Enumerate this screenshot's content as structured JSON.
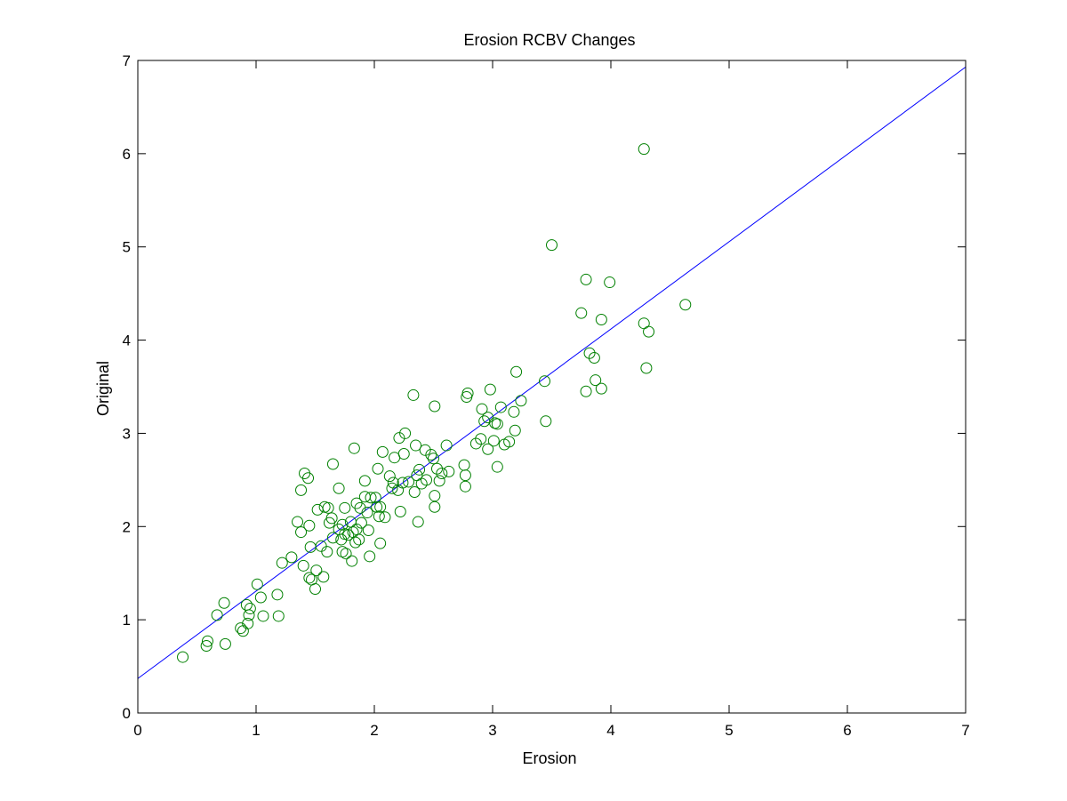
{
  "chart_data": {
    "type": "scatter",
    "title": "Erosion RCBV Changes",
    "xlabel": "Erosion",
    "ylabel": "Original",
    "xlim": [
      0,
      7
    ],
    "ylim": [
      0,
      7
    ],
    "x_ticks": [
      0,
      1,
      2,
      3,
      4,
      5,
      6,
      7
    ],
    "y_ticks": [
      0,
      1,
      2,
      3,
      4,
      5,
      6,
      7
    ],
    "grid": false,
    "legend": "none",
    "colors": {
      "points": "#008000",
      "fit_line": "#0000ff",
      "axes": "#000000",
      "background": "#ffffff"
    },
    "series": [
      {
        "kind": "points",
        "marker": "circle-open",
        "points": [
          [
            0.38,
            0.6
          ],
          [
            0.58,
            0.72
          ],
          [
            0.59,
            0.77
          ],
          [
            0.67,
            1.05
          ],
          [
            0.73,
            1.18
          ],
          [
            0.74,
            0.74
          ],
          [
            0.87,
            0.91
          ],
          [
            0.89,
            0.88
          ],
          [
            0.92,
            1.16
          ],
          [
            0.93,
            0.96
          ],
          [
            0.94,
            1.05
          ],
          [
            0.95,
            1.12
          ],
          [
            1.01,
            1.38
          ],
          [
            1.04,
            1.24
          ],
          [
            1.06,
            1.04
          ],
          [
            1.18,
            1.27
          ],
          [
            1.19,
            1.04
          ],
          [
            1.22,
            1.61
          ],
          [
            1.3,
            1.67
          ],
          [
            1.35,
            2.05
          ],
          [
            1.38,
            1.94
          ],
          [
            1.38,
            2.39
          ],
          [
            1.4,
            1.58
          ],
          [
            1.41,
            2.57
          ],
          [
            1.44,
            2.52
          ],
          [
            1.45,
            1.45
          ],
          [
            1.45,
            2.01
          ],
          [
            1.46,
            1.78
          ],
          [
            1.47,
            1.43
          ],
          [
            1.5,
            1.33
          ],
          [
            1.51,
            1.53
          ],
          [
            1.52,
            2.18
          ],
          [
            1.55,
            1.79
          ],
          [
            1.57,
            1.46
          ],
          [
            1.58,
            2.21
          ],
          [
            1.6,
            1.73
          ],
          [
            1.61,
            2.2
          ],
          [
            1.62,
            2.04
          ],
          [
            1.64,
            2.09
          ],
          [
            1.65,
            2.67
          ],
          [
            1.65,
            1.88
          ],
          [
            1.7,
            2.41
          ],
          [
            1.7,
            1.97
          ],
          [
            1.72,
            1.86
          ],
          [
            1.73,
            2.02
          ],
          [
            1.73,
            1.73
          ],
          [
            1.75,
            1.92
          ],
          [
            1.75,
            2.2
          ],
          [
            1.76,
            1.71
          ],
          [
            1.78,
            1.91
          ],
          [
            1.8,
            2.05
          ],
          [
            1.81,
            1.63
          ],
          [
            1.82,
            1.94
          ],
          [
            1.83,
            2.84
          ],
          [
            1.84,
            1.83
          ],
          [
            1.85,
            2.25
          ],
          [
            1.85,
            1.97
          ],
          [
            1.87,
            1.86
          ],
          [
            1.88,
            2.2
          ],
          [
            1.89,
            2.04
          ],
          [
            1.92,
            2.32
          ],
          [
            1.92,
            2.49
          ],
          [
            1.94,
            2.15
          ],
          [
            1.95,
            1.96
          ],
          [
            1.96,
            1.68
          ],
          [
            1.97,
            2.31
          ],
          [
            2.01,
            2.31
          ],
          [
            2.02,
            2.21
          ],
          [
            2.03,
            2.62
          ],
          [
            2.04,
            2.11
          ],
          [
            2.05,
            2.21
          ],
          [
            2.05,
            1.82
          ],
          [
            2.07,
            2.8
          ],
          [
            2.09,
            2.1
          ],
          [
            2.13,
            2.54
          ],
          [
            2.15,
            2.41
          ],
          [
            2.16,
            2.47
          ],
          [
            2.17,
            2.74
          ],
          [
            2.2,
            2.39
          ],
          [
            2.21,
            2.95
          ],
          [
            2.22,
            2.16
          ],
          [
            2.24,
            2.47
          ],
          [
            2.25,
            2.78
          ],
          [
            2.26,
            3.0
          ],
          [
            2.29,
            2.48
          ],
          [
            2.33,
            3.41
          ],
          [
            2.34,
            2.37
          ],
          [
            2.35,
            2.87
          ],
          [
            2.36,
            2.55
          ],
          [
            2.37,
            2.05
          ],
          [
            2.38,
            2.61
          ],
          [
            2.4,
            2.46
          ],
          [
            2.43,
            2.82
          ],
          [
            2.44,
            2.5
          ],
          [
            2.48,
            2.77
          ],
          [
            2.5,
            2.73
          ],
          [
            2.51,
            2.33
          ],
          [
            2.51,
            2.21
          ],
          [
            2.51,
            3.29
          ],
          [
            2.53,
            2.62
          ],
          [
            2.55,
            2.49
          ],
          [
            2.57,
            2.57
          ],
          [
            2.61,
            2.87
          ],
          [
            2.63,
            2.59
          ],
          [
            2.76,
            2.66
          ],
          [
            2.77,
            2.55
          ],
          [
            2.77,
            2.43
          ],
          [
            2.78,
            3.39
          ],
          [
            2.79,
            3.43
          ],
          [
            2.86,
            2.89
          ],
          [
            2.9,
            2.94
          ],
          [
            2.91,
            3.26
          ],
          [
            2.93,
            3.13
          ],
          [
            2.96,
            3.17
          ],
          [
            2.96,
            2.83
          ],
          [
            2.98,
            3.47
          ],
          [
            3.01,
            2.92
          ],
          [
            3.02,
            3.11
          ],
          [
            3.04,
            3.1
          ],
          [
            3.04,
            2.64
          ],
          [
            3.07,
            3.28
          ],
          [
            3.1,
            2.88
          ],
          [
            3.14,
            2.91
          ],
          [
            3.18,
            3.23
          ],
          [
            3.19,
            3.03
          ],
          [
            3.2,
            3.66
          ],
          [
            3.24,
            3.35
          ],
          [
            3.44,
            3.56
          ],
          [
            3.45,
            3.13
          ],
          [
            3.5,
            5.02
          ],
          [
            3.75,
            4.29
          ],
          [
            3.79,
            4.65
          ],
          [
            3.79,
            3.45
          ],
          [
            3.82,
            3.86
          ],
          [
            3.86,
            3.81
          ],
          [
            3.87,
            3.57
          ],
          [
            3.92,
            4.22
          ],
          [
            3.92,
            3.48
          ],
          [
            3.99,
            4.62
          ],
          [
            4.28,
            4.18
          ],
          [
            4.28,
            6.05
          ],
          [
            4.3,
            3.7
          ],
          [
            4.32,
            4.09
          ],
          [
            4.63,
            4.38
          ]
        ]
      },
      {
        "kind": "line",
        "x": [
          0,
          7
        ],
        "y": [
          0.37,
          6.93
        ]
      }
    ]
  }
}
